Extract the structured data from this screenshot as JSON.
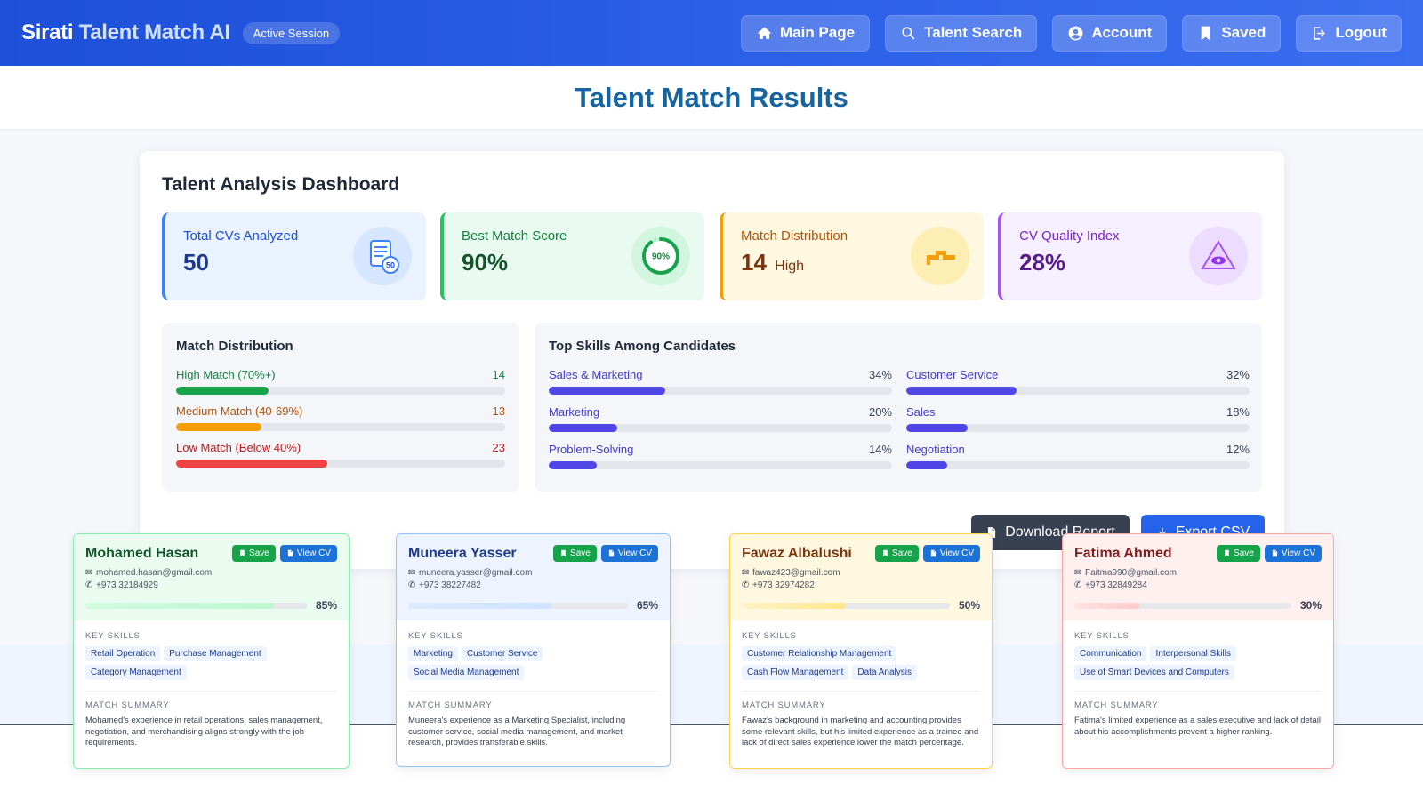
{
  "header": {
    "brand_main": "Sirati",
    "brand_accent": "Talent Match AI",
    "session_badge": "Active Session",
    "nav": [
      {
        "label": "Main Page",
        "icon": "home-icon"
      },
      {
        "label": "Talent Search",
        "icon": "search-icon"
      },
      {
        "label": "Account",
        "icon": "user-icon"
      },
      {
        "label": "Saved",
        "icon": "bookmark-icon"
      },
      {
        "label": "Logout",
        "icon": "logout-icon"
      }
    ]
  },
  "page_title": "Talent Match Results",
  "dashboard": {
    "title": "Talent Analysis Dashboard",
    "stats": {
      "total_cvs": {
        "label": "Total CVs Analyzed",
        "value": "50",
        "icon_badge": "50"
      },
      "best_match": {
        "label": "Best Match Score",
        "value": "90%",
        "ring_text": "90%",
        "ring_fraction": 0.9
      },
      "distribution": {
        "label": "Match Distribution",
        "value": "14",
        "suffix": "High"
      },
      "cv_quality": {
        "label": "CV Quality Index",
        "value": "28%"
      }
    },
    "match_distribution": {
      "title": "Match Distribution",
      "rows": [
        {
          "label": "High Match (70%+)",
          "count": "14",
          "fraction": 0.28,
          "color": "#16a34a",
          "text_color": "#15803d"
        },
        {
          "label": "Medium Match (40-69%)",
          "count": "13",
          "fraction": 0.26,
          "color": "#f59e0b",
          "text_color": "#b45309"
        },
        {
          "label": "Low Match (Below 40%)",
          "count": "23",
          "fraction": 0.46,
          "color": "#ef4444",
          "text_color": "#b91c1c"
        }
      ]
    },
    "top_skills": {
      "title": "Top Skills Among Candidates",
      "skills": [
        {
          "name": "Sales & Marketing",
          "pct": "34%",
          "fraction": 0.34
        },
        {
          "name": "Customer Service",
          "pct": "32%",
          "fraction": 0.32
        },
        {
          "name": "Marketing",
          "pct": "20%",
          "fraction": 0.2
        },
        {
          "name": "Sales",
          "pct": "18%",
          "fraction": 0.18
        },
        {
          "name": "Problem-Solving",
          "pct": "14%",
          "fraction": 0.14
        },
        {
          "name": "Negotiation",
          "pct": "12%",
          "fraction": 0.12
        }
      ]
    },
    "download_label": "Download Report",
    "export_label": "Export CSV"
  },
  "candidates": [
    {
      "name": "Mohamed Hasan",
      "email": "mohamed.hasan@gmail.com",
      "phone": "+973 32184929",
      "score": "85%",
      "score_fraction": 0.85,
      "skills_label": "KEY SKILLS",
      "skills": [
        "Retail Operation",
        "Purchase Management",
        "Category Management"
      ],
      "summary_label": "MATCH SUMMARY",
      "summary": "Mohamed's experience in retail operations, sales management, negotiation, and merchandising aligns strongly with the job requirements.",
      "save_label": "Save",
      "view_label": "View CV"
    },
    {
      "name": "Muneera Yasser",
      "email": "muneera.yasser@gmail.com",
      "phone": "+973 38227482",
      "score": "65%",
      "score_fraction": 0.65,
      "skills_label": "KEY SKILLS",
      "skills": [
        "Marketing",
        "Customer Service",
        "Social Media Management"
      ],
      "summary_label": "MATCH SUMMARY",
      "summary": "Muneera's experience as a Marketing Specialist, including customer service, social media management, and market research, provides transferable skills.",
      "save_label": "Save",
      "view_label": "View CV"
    },
    {
      "name": "Fawaz Albalushi",
      "email": "fawaz423@gmail.com",
      "phone": "+973 32974282",
      "score": "50%",
      "score_fraction": 0.5,
      "skills_label": "KEY SKILLS",
      "skills": [
        "Customer Relationship Management",
        "Cash Flow Management",
        "Data Analysis"
      ],
      "summary_label": "MATCH SUMMARY",
      "summary": "Fawaz's background in marketing and accounting provides some relevant skills, but his limited experience as a trainee and lack of direct sales experience lower the match percentage.",
      "save_label": "Save",
      "view_label": "View CV"
    },
    {
      "name": "Fatima Ahmed",
      "email": "Faitma990@gmail.com",
      "phone": "+973 32849284",
      "score": "30%",
      "score_fraction": 0.3,
      "skills_label": "KEY SKILLS",
      "skills": [
        "Communication",
        "Interpersonal Skills",
        "Use of Smart Devices and Computers"
      ],
      "summary_label": "MATCH SUMMARY",
      "summary": "Fatima's limited experience as a sales executive and lack of detail about his accomplishments prevent a higher ranking.",
      "save_label": "Save",
      "view_label": "View CV"
    }
  ]
}
